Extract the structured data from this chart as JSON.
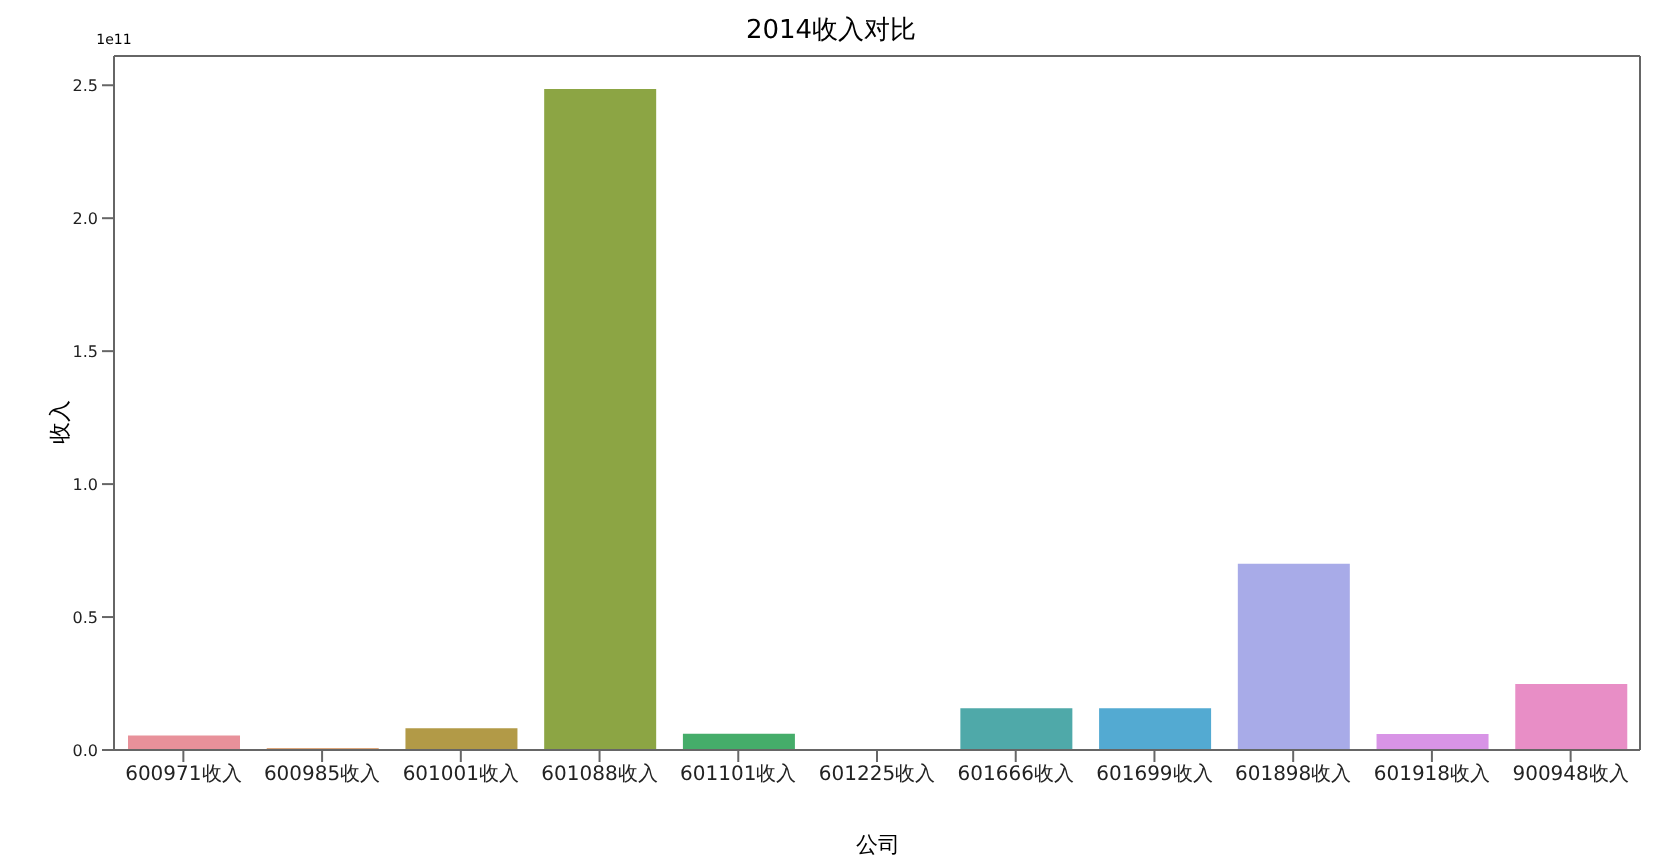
{
  "chart_data": {
    "type": "bar",
    "title": "2014收入对比",
    "xlabel": "公司",
    "ylabel": "收入",
    "annotations": [
      "1e11"
    ],
    "categories": [
      "600971收入",
      "600985收入",
      "601001收入",
      "601088收入",
      "601101收入",
      "601225收入",
      "601666收入",
      "601699收入",
      "601898收入",
      "601918收入",
      "900948收入"
    ],
    "values": [
      0.055,
      0.007,
      0.082,
      2.486,
      0.061,
      0,
      0.157,
      0.157,
      0.7,
      0.06,
      0.248
    ],
    "colors": [
      "#e8919a",
      "#d1884f",
      "#b29a47",
      "#8ca544",
      "#45ad6a",
      "#4cab8e",
      "#4fa9a9",
      "#53aad2",
      "#a8abe8",
      "#d894e6",
      "#e88ec6"
    ],
    "ylim": [
      0,
      2.61
    ],
    "yticks": [
      {
        "value": 0,
        "label": "0.0"
      },
      {
        "value": 0.5,
        "label": "0.5"
      },
      {
        "value": 1,
        "label": "1.0"
      },
      {
        "value": 1.5,
        "label": "1.5"
      },
      {
        "value": 2,
        "label": "2.0"
      },
      {
        "value": 2.5,
        "label": "2.5"
      }
    ],
    "grid": false,
    "legend": false
  }
}
